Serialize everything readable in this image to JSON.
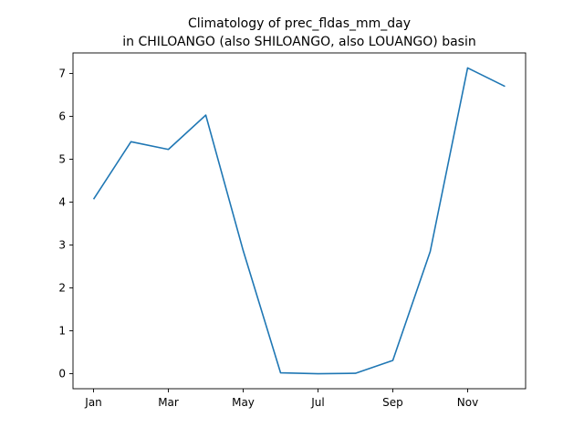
{
  "chart_data": {
    "type": "line",
    "title_lines": [
      "Climatology of prec_fldas_mm_day",
      "in CHILOANGO (also SHILOANGO, also LOUANGO) basin"
    ],
    "xlabel": "",
    "ylabel": "",
    "x": [
      "Jan",
      "Feb",
      "Mar",
      "Apr",
      "May",
      "Jun",
      "Jul",
      "Aug",
      "Sep",
      "Oct",
      "Nov",
      "Dec"
    ],
    "x_tick_labels": [
      "Jan",
      "Mar",
      "May",
      "Jul",
      "Sep",
      "Nov"
    ],
    "series": [
      {
        "values": [
          4.07,
          5.41,
          5.23,
          6.03,
          2.87,
          0.02,
          0.0,
          0.01,
          0.31,
          2.85,
          7.13,
          6.7
        ],
        "color": "#1f77b4"
      }
    ],
    "ylim": [
      -0.35,
      7.48
    ],
    "y_ticks": [
      0,
      1,
      2,
      3,
      4,
      5,
      6,
      7
    ],
    "grid": false,
    "legend": "none"
  }
}
